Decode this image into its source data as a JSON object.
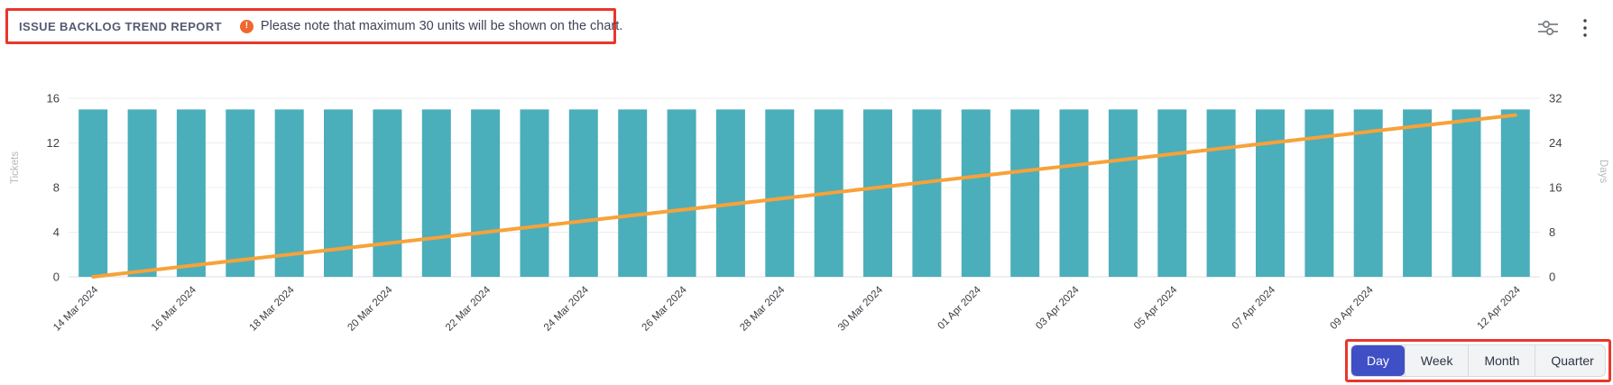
{
  "annotation": {
    "color": "#e8372b"
  },
  "header": {
    "title": "ISSUE BACKLOG TREND REPORT",
    "note": "Please note that maximum 30 units will be shown on the chart.",
    "note_icon": "alert-circle-icon",
    "note_icon_color": "#f0662f",
    "note_icon_glyph": "!"
  },
  "toolbar": {
    "icons": [
      "filter-sliders-icon",
      "kebab-menu-icon"
    ]
  },
  "controls": {
    "options": [
      "Day",
      "Week",
      "Month",
      "Quarter"
    ],
    "selected": "Day",
    "selected_color": "#3f4fc5"
  },
  "chart_data": {
    "type": "bar",
    "title": "Issue backlog trend",
    "categories": [
      "14 Mar 2024",
      "15 Mar 2024",
      "16 Mar 2024",
      "17 Mar 2024",
      "18 Mar 2024",
      "19 Mar 2024",
      "20 Mar 2024",
      "21 Mar 2024",
      "22 Mar 2024",
      "23 Mar 2024",
      "24 Mar 2024",
      "25 Mar 2024",
      "26 Mar 2024",
      "27 Mar 2024",
      "28 Mar 2024",
      "29 Mar 2024",
      "30 Mar 2024",
      "31 Mar 2024",
      "01 Apr 2024",
      "02 Apr 2024",
      "03 Apr 2024",
      "04 Apr 2024",
      "05 Apr 2024",
      "06 Apr 2024",
      "07 Apr 2024",
      "08 Apr 2024",
      "09 Apr 2024",
      "10 Apr 2024",
      "11 Apr 2024",
      "12 Apr 2024"
    ],
    "x_tick_indices": [
      0,
      2,
      4,
      6,
      8,
      10,
      12,
      14,
      16,
      18,
      20,
      22,
      24,
      26,
      29
    ],
    "series": [
      {
        "name": "Tickets",
        "type": "bar",
        "axis": "left",
        "color": "#4baebb",
        "values": [
          15,
          15,
          15,
          15,
          15,
          15,
          15,
          15,
          15,
          15,
          15,
          15,
          15,
          15,
          15,
          15,
          15,
          15,
          15,
          15,
          15,
          15,
          15,
          15,
          15,
          15,
          15,
          15,
          15,
          15
        ]
      },
      {
        "name": "Days",
        "type": "line",
        "axis": "right",
        "color": "#f7a239",
        "values": [
          0,
          1,
          2,
          3,
          4,
          5,
          6,
          7,
          8,
          9,
          10,
          11,
          12,
          13,
          14,
          15,
          16,
          17,
          18,
          19,
          20,
          21,
          22,
          23,
          24,
          25,
          26,
          27,
          28,
          29
        ]
      }
    ],
    "left_axis": {
      "label": "Tickets",
      "min": 0,
      "max": 16,
      "ticks": [
        0,
        4,
        8,
        12,
        16
      ]
    },
    "right_axis": {
      "label": "Days",
      "min": 0,
      "max": 32,
      "ticks": [
        0,
        8,
        16,
        24,
        32
      ]
    },
    "grid": true,
    "x_label_rotation": -45,
    "legend": "none"
  }
}
